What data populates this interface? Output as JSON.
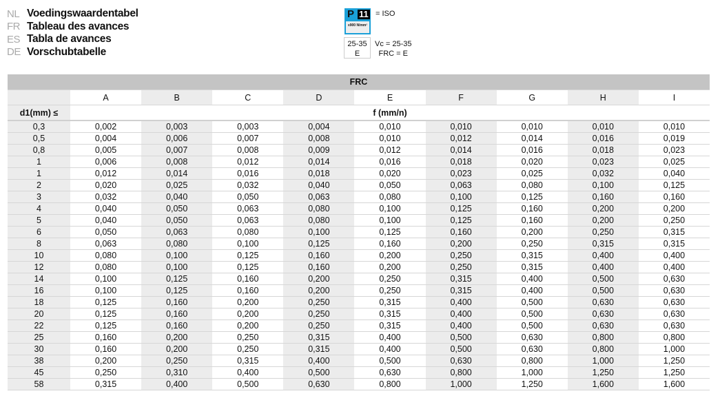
{
  "titles": [
    {
      "code": "NL",
      "text": "Voedingswaardentabel"
    },
    {
      "code": "FR",
      "text": "Tableau des avances"
    },
    {
      "code": "ES",
      "text": "Tabla de avances"
    },
    {
      "code": "DE",
      "text": "Vorschubtabelle"
    }
  ],
  "legend": {
    "iso_letter": "P",
    "iso_number": "11",
    "iso_material": "≤900 N/mm²",
    "iso_label": "= ISO",
    "iso_color": "#1aa0d8",
    "vc_box": "25-35",
    "frc_box": "E",
    "vc_label": "Vc = 25-35",
    "frc_label": "FRC = E"
  },
  "table": {
    "group": "FRC",
    "columns": [
      "A",
      "B",
      "C",
      "D",
      "E",
      "F",
      "G",
      "H",
      "I"
    ],
    "row_header": "d1(mm) ≤",
    "unit": "f (mm/n)",
    "rows": [
      [
        "0,3",
        "0,002",
        "0,003",
        "0,003",
        "0,004",
        "0,010",
        "0,010",
        "0,010",
        "0,010",
        "0,010"
      ],
      [
        "0,5",
        "0,004",
        "0,006",
        "0,007",
        "0,008",
        "0,010",
        "0,012",
        "0,014",
        "0,016",
        "0,019"
      ],
      [
        "0,8",
        "0,005",
        "0,007",
        "0,008",
        "0,009",
        "0,012",
        "0,014",
        "0,016",
        "0,018",
        "0,023"
      ],
      [
        "1",
        "0,006",
        "0,008",
        "0,012",
        "0,014",
        "0,016",
        "0,018",
        "0,020",
        "0,023",
        "0,025"
      ],
      [
        "1",
        "0,012",
        "0,014",
        "0,016",
        "0,018",
        "0,020",
        "0,023",
        "0,025",
        "0,032",
        "0,040"
      ],
      [
        "2",
        "0,020",
        "0,025",
        "0,032",
        "0,040",
        "0,050",
        "0,063",
        "0,080",
        "0,100",
        "0,125"
      ],
      [
        "3",
        "0,032",
        "0,040",
        "0,050",
        "0,063",
        "0,080",
        "0,100",
        "0,125",
        "0,160",
        "0,160"
      ],
      [
        "4",
        "0,040",
        "0,050",
        "0,063",
        "0,080",
        "0,100",
        "0,125",
        "0,160",
        "0,200",
        "0,200"
      ],
      [
        "5",
        "0,040",
        "0,050",
        "0,063",
        "0,080",
        "0,100",
        "0,125",
        "0,160",
        "0,200",
        "0,250"
      ],
      [
        "6",
        "0,050",
        "0,063",
        "0,080",
        "0,100",
        "0,125",
        "0,160",
        "0,200",
        "0,250",
        "0,315"
      ],
      [
        "8",
        "0,063",
        "0,080",
        "0,100",
        "0,125",
        "0,160",
        "0,200",
        "0,250",
        "0,315",
        "0,315"
      ],
      [
        "10",
        "0,080",
        "0,100",
        "0,125",
        "0,160",
        "0,200",
        "0,250",
        "0,315",
        "0,400",
        "0,400"
      ],
      [
        "12",
        "0,080",
        "0,100",
        "0,125",
        "0,160",
        "0,200",
        "0,250",
        "0,315",
        "0,400",
        "0,400"
      ],
      [
        "14",
        "0,100",
        "0,125",
        "0,160",
        "0,200",
        "0,250",
        "0,315",
        "0,400",
        "0,500",
        "0,630"
      ],
      [
        "16",
        "0,100",
        "0,125",
        "0,160",
        "0,200",
        "0,250",
        "0,315",
        "0,400",
        "0,500",
        "0,630"
      ],
      [
        "18",
        "0,125",
        "0,160",
        "0,200",
        "0,250",
        "0,315",
        "0,400",
        "0,500",
        "0,630",
        "0,630"
      ],
      [
        "20",
        "0,125",
        "0,160",
        "0,200",
        "0,250",
        "0,315",
        "0,400",
        "0,500",
        "0,630",
        "0,630"
      ],
      [
        "22",
        "0,125",
        "0,160",
        "0,200",
        "0,250",
        "0,315",
        "0,400",
        "0,500",
        "0,630",
        "0,630"
      ],
      [
        "25",
        "0,160",
        "0,200",
        "0,250",
        "0,315",
        "0,400",
        "0,500",
        "0,630",
        "0,800",
        "0,800"
      ],
      [
        "30",
        "0,160",
        "0,200",
        "0,250",
        "0,315",
        "0,400",
        "0,500",
        "0,630",
        "0,800",
        "1,000"
      ],
      [
        "38",
        "0,200",
        "0,250",
        "0,315",
        "0,400",
        "0,500",
        "0,630",
        "0,800",
        "1,000",
        "1,250"
      ],
      [
        "45",
        "0,250",
        "0,310",
        "0,400",
        "0,500",
        "0,630",
        "0,800",
        "1,000",
        "1,250",
        "1,250"
      ],
      [
        "58",
        "0,315",
        "0,400",
        "0,500",
        "0,630",
        "0,800",
        "1,000",
        "1,250",
        "1,600",
        "1,600"
      ]
    ]
  }
}
